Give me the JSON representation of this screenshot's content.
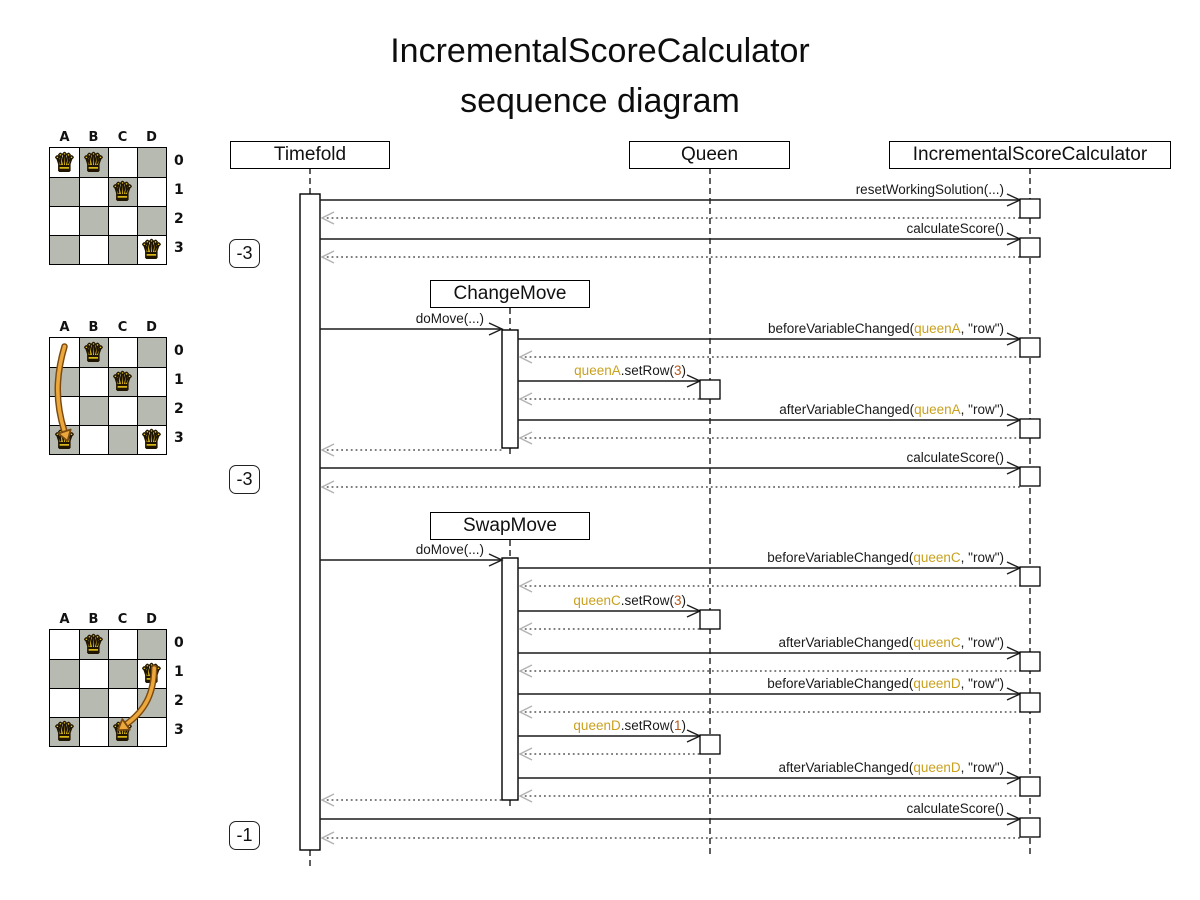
{
  "title": {
    "line1": "IncrementalScoreCalculator",
    "line2": "sequence diagram"
  },
  "lifelines": [
    {
      "name": "Timefold"
    },
    {
      "name": "Queen"
    },
    {
      "name": "IncrementalScoreCalculator"
    }
  ],
  "moves": [
    {
      "name": "ChangeMove"
    },
    {
      "name": "SwapMove"
    }
  ],
  "scores": [
    "-3",
    "-3",
    "-1"
  ],
  "messages": [
    {
      "pre": "resetWorkingSolution(...)"
    },
    {
      "pre": "calculateScore()"
    },
    {
      "pre": "doMove(...)"
    },
    {
      "pre": "beforeVariableChanged(",
      "queen": "queenA",
      "post": ", \"row\")"
    },
    {
      "queen": "queenA",
      "mid": ".setRow(",
      "num": "3",
      "post": ")"
    },
    {
      "pre": "afterVariableChanged(",
      "queen": "queenA",
      "post": ", \"row\")"
    },
    {
      "pre": "calculateScore()"
    },
    {
      "pre": "doMove(...)"
    },
    {
      "pre": "beforeVariableChanged(",
      "queen": "queenC",
      "post": ", \"row\")"
    },
    {
      "queen": "queenC",
      "mid": ".setRow(",
      "num": "3",
      "post": ")"
    },
    {
      "pre": "afterVariableChanged(",
      "queen": "queenC",
      "post": ", \"row\")"
    },
    {
      "pre": "beforeVariableChanged(",
      "queen": "queenD",
      "post": ", \"row\")"
    },
    {
      "queen": "queenD",
      "mid": ".setRow(",
      "num": "1",
      "post": ")"
    },
    {
      "pre": "afterVariableChanged(",
      "queen": "queenD",
      "post": ", \"row\")"
    },
    {
      "pre": "calculateScore()"
    }
  ],
  "boards": [
    {
      "columns": [
        "A",
        "B",
        "C",
        "D"
      ],
      "rows": [
        "0",
        "1",
        "2",
        "3"
      ],
      "queens": [
        "A0",
        "B0",
        "C1",
        "D3"
      ]
    },
    {
      "columns": [
        "A",
        "B",
        "C",
        "D"
      ],
      "rows": [
        "0",
        "1",
        "2",
        "3"
      ],
      "queens": [
        "B0",
        "C1",
        "A3",
        "D3"
      ],
      "move": {
        "from": "A0",
        "to": "A3"
      }
    },
    {
      "columns": [
        "A",
        "B",
        "C",
        "D"
      ],
      "rows": [
        "0",
        "1",
        "2",
        "3"
      ],
      "queens": [
        "B0",
        "D1",
        "A3",
        "C3"
      ],
      "move": {
        "from": "D1",
        "to": "C3"
      }
    }
  ],
  "colors": {
    "queen_ref": "#c9a11f",
    "number_ref": "#b5591d",
    "board_shade": "#b7bab0",
    "queen_gold": "#f3cf1c",
    "move_arrow_fill": "#eda83d",
    "move_arrow_border": "#7a4a10",
    "line": "#1c1c1c",
    "return_line": "#555555",
    "return_head": "#b3b3b3"
  }
}
